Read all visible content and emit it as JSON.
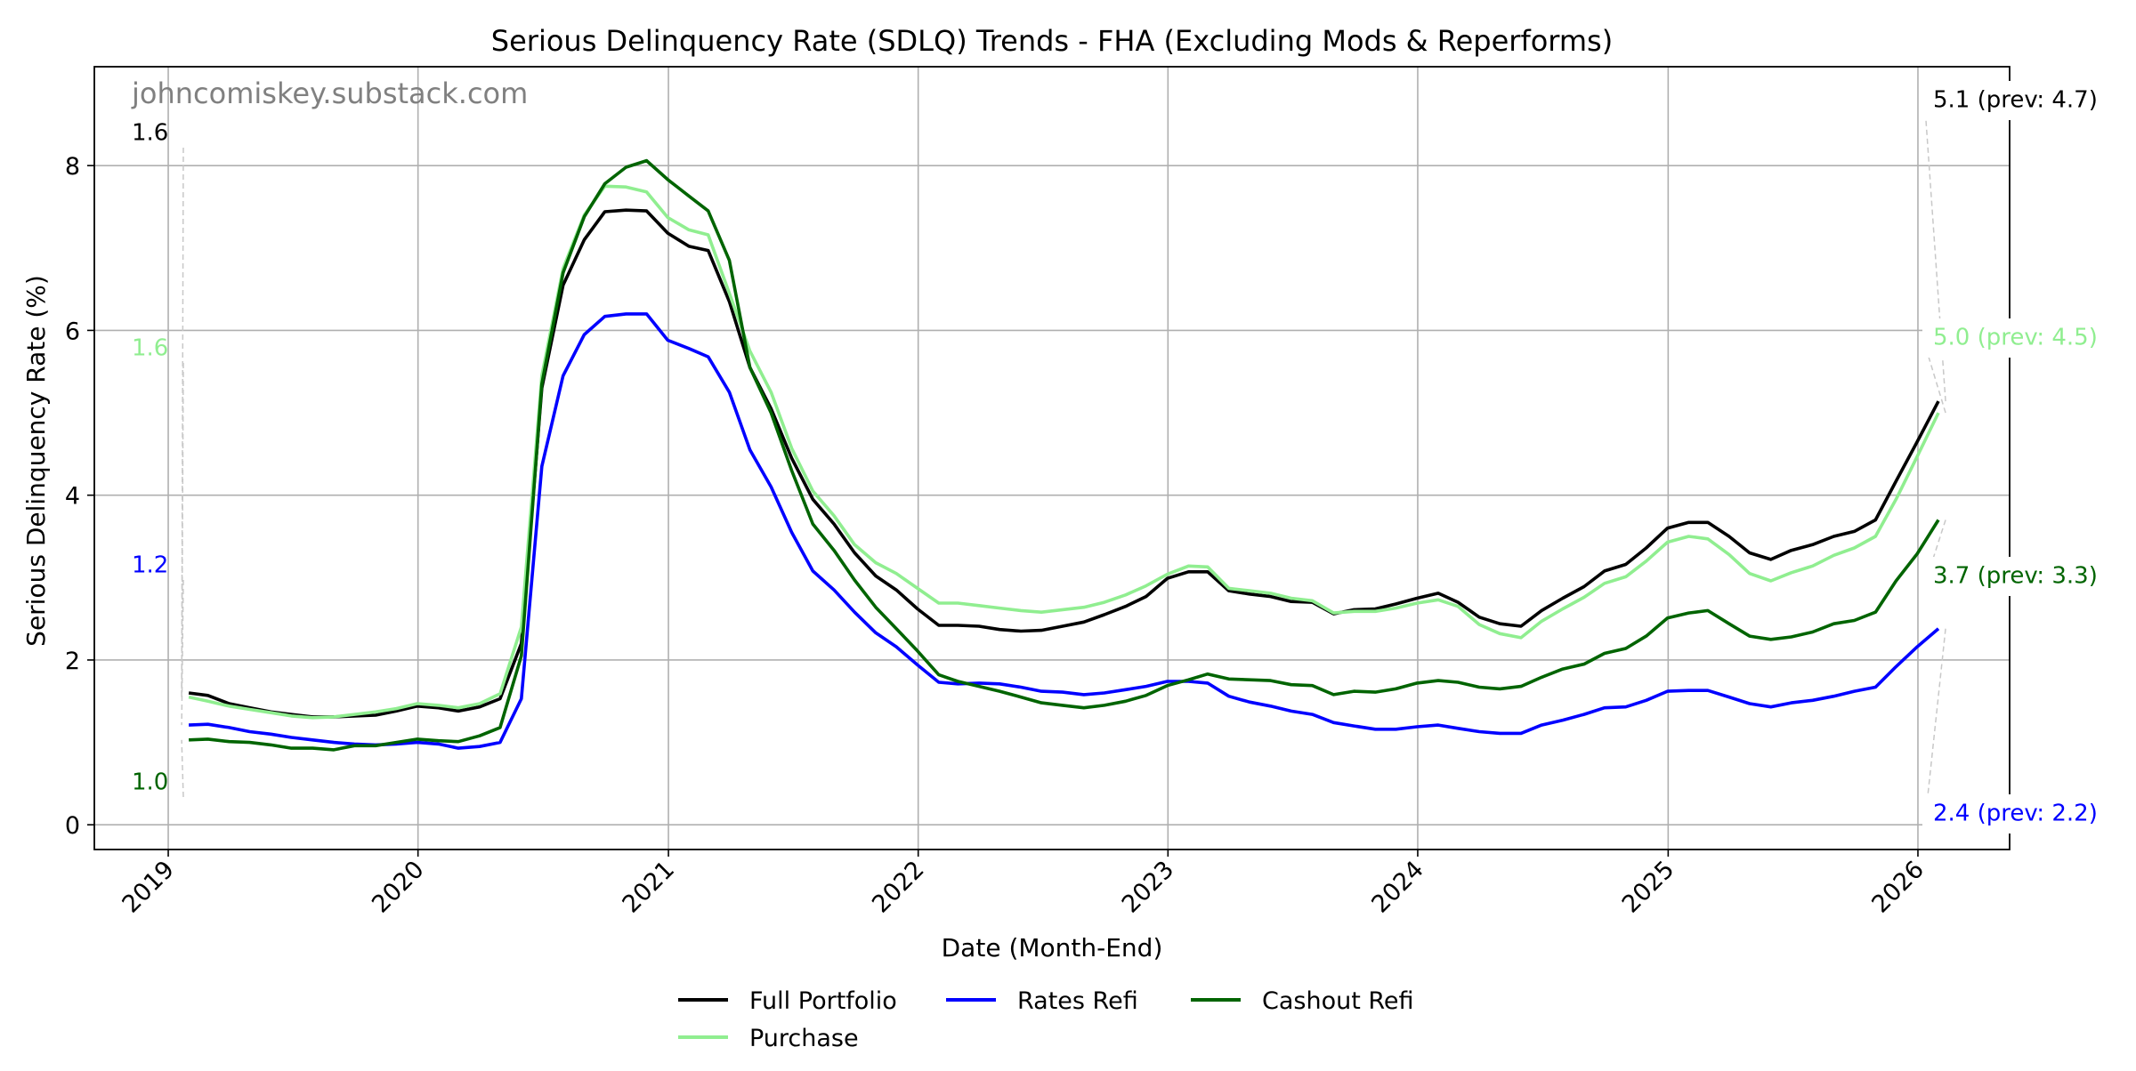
{
  "chart_data": {
    "type": "line",
    "title": "Serious Delinquency Rate (SDLQ) Trends - FHA (Excluding Mods & Reperforms)",
    "xlabel": "Date (Month-End)",
    "ylabel": "Serious Delinquency Rate (%)",
    "watermark": "johncomiskey.substack.com",
    "xlim": [
      "2018-09-15",
      "2026-05-15"
    ],
    "ylim": [
      -0.3,
      9.2
    ],
    "x_ticks": [
      "2019-01-01",
      "2020-01-01",
      "2021-01-01",
      "2022-01-01",
      "2023-01-01",
      "2024-01-01",
      "2025-01-01",
      "2026-01-01"
    ],
    "x_tick_labels": [
      "2019",
      "2020",
      "2021",
      "2022",
      "2023",
      "2024",
      "2025",
      "2026"
    ],
    "y_ticks": [
      0,
      2,
      4,
      6,
      8
    ],
    "y_tick_labels": [
      "0",
      "2",
      "4",
      "6",
      "8"
    ],
    "grid": true,
    "legend_position": "bottom-center",
    "x": [
      "2019-01-31",
      "2019-02-28",
      "2019-03-31",
      "2019-04-30",
      "2019-05-31",
      "2019-06-30",
      "2019-07-31",
      "2019-08-31",
      "2019-09-30",
      "2019-10-31",
      "2019-11-30",
      "2019-12-31",
      "2020-01-31",
      "2020-02-29",
      "2020-03-31",
      "2020-04-30",
      "2020-05-31",
      "2020-06-30",
      "2020-07-31",
      "2020-08-31",
      "2020-09-30",
      "2020-10-31",
      "2020-11-30",
      "2020-12-31",
      "2021-01-31",
      "2021-02-28",
      "2021-03-31",
      "2021-04-30",
      "2021-05-31",
      "2021-06-30",
      "2021-07-31",
      "2021-08-31",
      "2021-09-30",
      "2021-10-31",
      "2021-11-30",
      "2021-12-31",
      "2022-01-31",
      "2022-02-28",
      "2022-03-31",
      "2022-04-30",
      "2022-05-31",
      "2022-06-30",
      "2022-07-31",
      "2022-08-31",
      "2022-09-30",
      "2022-10-31",
      "2022-11-30",
      "2022-12-31",
      "2023-01-31",
      "2023-02-28",
      "2023-03-31",
      "2023-04-30",
      "2023-05-31",
      "2023-06-30",
      "2023-07-31",
      "2023-08-31",
      "2023-09-30",
      "2023-10-31",
      "2023-11-30",
      "2023-12-31",
      "2024-01-31",
      "2024-02-29",
      "2024-03-31",
      "2024-04-30",
      "2024-05-31",
      "2024-06-30",
      "2024-07-31",
      "2024-08-31",
      "2024-09-30",
      "2024-10-31",
      "2024-11-30",
      "2024-12-31",
      "2025-01-31",
      "2025-02-28",
      "2025-03-31",
      "2025-04-30",
      "2025-05-31",
      "2025-06-30",
      "2025-07-31",
      "2025-08-31",
      "2025-09-30",
      "2025-10-31",
      "2025-11-30",
      "2025-12-31",
      "2026-01-31"
    ],
    "series": [
      {
        "name": "Full Portfolio",
        "color": "#000000",
        "values": [
          1.6,
          1.57,
          1.47,
          1.42,
          1.37,
          1.34,
          1.31,
          1.31,
          1.32,
          1.33,
          1.38,
          1.44,
          1.42,
          1.38,
          1.43,
          1.53,
          2.2,
          5.3,
          6.55,
          7.1,
          7.44,
          7.46,
          7.45,
          7.18,
          7.02,
          6.97,
          6.35,
          5.55,
          5.05,
          4.45,
          3.95,
          3.65,
          3.3,
          3.02,
          2.85,
          2.62,
          2.42,
          2.42,
          2.41,
          2.37,
          2.35,
          2.36,
          2.41,
          2.46,
          2.55,
          2.65,
          2.77,
          2.99,
          3.07,
          3.07,
          2.84,
          2.8,
          2.77,
          2.71,
          2.7,
          2.56,
          2.61,
          2.62,
          2.68,
          2.75,
          2.81,
          2.7,
          2.52,
          2.44,
          2.41,
          2.6,
          2.75,
          2.89,
          3.08,
          3.16,
          3.36,
          3.6,
          3.67,
          3.67,
          3.5,
          3.3,
          3.22,
          3.33,
          3.4,
          3.5,
          3.56,
          3.7,
          4.17,
          4.65,
          5.14
        ]
      },
      {
        "name": "Purchase",
        "color": "#90ee90",
        "values": [
          1.55,
          1.5,
          1.44,
          1.4,
          1.36,
          1.32,
          1.3,
          1.31,
          1.34,
          1.37,
          1.41,
          1.47,
          1.45,
          1.42,
          1.47,
          1.59,
          2.4,
          5.45,
          6.75,
          7.4,
          7.75,
          7.74,
          7.68,
          7.37,
          7.22,
          7.16,
          6.45,
          5.75,
          5.25,
          4.57,
          4.05,
          3.75,
          3.4,
          3.18,
          3.05,
          2.87,
          2.69,
          2.69,
          2.66,
          2.63,
          2.6,
          2.58,
          2.61,
          2.64,
          2.7,
          2.79,
          2.9,
          3.04,
          3.14,
          3.13,
          2.87,
          2.84,
          2.81,
          2.75,
          2.72,
          2.57,
          2.59,
          2.59,
          2.63,
          2.69,
          2.73,
          2.65,
          2.43,
          2.32,
          2.27,
          2.47,
          2.62,
          2.76,
          2.93,
          3.01,
          3.2,
          3.43,
          3.5,
          3.47,
          3.28,
          3.05,
          2.96,
          3.06,
          3.14,
          3.27,
          3.36,
          3.5,
          3.95,
          4.47,
          5.0
        ]
      },
      {
        "name": "Rates Refi",
        "color": "#0000ff",
        "values": [
          1.21,
          1.22,
          1.18,
          1.13,
          1.1,
          1.06,
          1.03,
          1.0,
          0.98,
          0.97,
          0.98,
          1.0,
          0.98,
          0.93,
          0.95,
          1.0,
          1.53,
          4.35,
          5.45,
          5.95,
          6.17,
          6.2,
          6.2,
          5.88,
          5.78,
          5.68,
          5.25,
          4.55,
          4.1,
          3.55,
          3.08,
          2.85,
          2.58,
          2.33,
          2.16,
          1.94,
          1.73,
          1.71,
          1.72,
          1.71,
          1.67,
          1.62,
          1.61,
          1.58,
          1.6,
          1.64,
          1.68,
          1.74,
          1.74,
          1.72,
          1.56,
          1.49,
          1.44,
          1.38,
          1.34,
          1.24,
          1.2,
          1.16,
          1.16,
          1.19,
          1.21,
          1.17,
          1.13,
          1.11,
          1.11,
          1.21,
          1.27,
          1.34,
          1.42,
          1.43,
          1.51,
          1.62,
          1.63,
          1.63,
          1.55,
          1.47,
          1.43,
          1.48,
          1.51,
          1.56,
          1.62,
          1.67,
          1.92,
          2.16,
          2.38
        ]
      },
      {
        "name": "Cashout Refi",
        "color": "#006400",
        "values": [
          1.03,
          1.04,
          1.01,
          1.0,
          0.97,
          0.93,
          0.93,
          0.91,
          0.96,
          0.96,
          1.0,
          1.04,
          1.02,
          1.01,
          1.08,
          1.18,
          2.05,
          5.35,
          6.7,
          7.38,
          7.78,
          7.98,
          8.06,
          7.83,
          7.63,
          7.45,
          6.85,
          5.55,
          5.0,
          4.3,
          3.65,
          3.33,
          2.97,
          2.64,
          2.38,
          2.11,
          1.82,
          1.74,
          1.68,
          1.62,
          1.55,
          1.48,
          1.45,
          1.42,
          1.45,
          1.5,
          1.57,
          1.69,
          1.76,
          1.83,
          1.77,
          1.76,
          1.75,
          1.7,
          1.69,
          1.58,
          1.62,
          1.61,
          1.65,
          1.72,
          1.75,
          1.73,
          1.67,
          1.65,
          1.68,
          1.79,
          1.89,
          1.95,
          2.08,
          2.14,
          2.29,
          2.51,
          2.57,
          2.6,
          2.44,
          2.29,
          2.25,
          2.28,
          2.34,
          2.44,
          2.48,
          2.58,
          2.96,
          3.29,
          3.7
        ]
      }
    ],
    "annotations_left": [
      {
        "series": "Full Portfolio",
        "text": "1.6",
        "color": "#000000"
      },
      {
        "series": "Purchase",
        "text": "1.6",
        "color": "#90ee90"
      },
      {
        "series": "Rates Refi",
        "text": "1.2",
        "color": "#0000ff"
      },
      {
        "series": "Cashout Refi",
        "text": "1.0",
        "color": "#006400"
      }
    ],
    "annotations_right": [
      {
        "series": "Full Portfolio",
        "text": "5.1 (prev: 4.7)",
        "color": "#000000"
      },
      {
        "series": "Purchase",
        "text": "5.0 (prev: 4.5)",
        "color": "#90ee90"
      },
      {
        "series": "Cashout Refi",
        "text": "3.7 (prev: 3.3)",
        "color": "#006400"
      },
      {
        "series": "Rates Refi",
        "text": "2.4 (prev: 2.2)",
        "color": "#0000ff"
      }
    ],
    "legend": [
      "Full Portfolio",
      "Rates Refi",
      "Cashout Refi",
      "Purchase"
    ]
  }
}
